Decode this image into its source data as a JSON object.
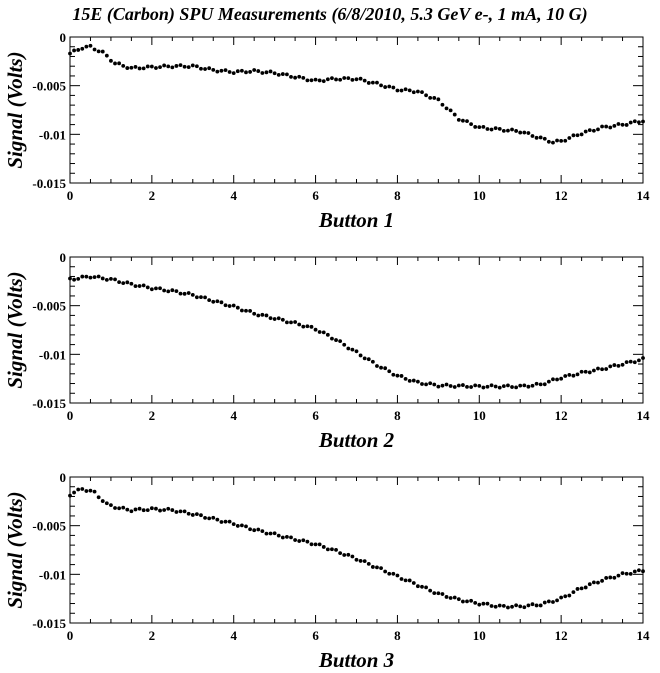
{
  "title": "15E (Carbon) SPU Measurements (6/8/2010, 5.3 GeV e-, 1 mA, 10 G)",
  "chart_data": [
    {
      "type": "scatter",
      "title": "",
      "xlabel": "Button 1",
      "ylabel": "Signal (Volts)",
      "xlim": [
        0,
        14
      ],
      "ylim": [
        -0.015,
        0
      ],
      "xticks": [
        "0",
        "2",
        "4",
        "6",
        "8",
        "10",
        "12",
        "14"
      ],
      "yticks": [
        "0",
        "-0.005",
        "-0.01",
        "-0.015"
      ],
      "grid": false,
      "anchors": [
        [
          0,
          -0.0017
        ],
        [
          0.3,
          -0.0011
        ],
        [
          0.5,
          -0.001
        ],
        [
          0.8,
          -0.0016
        ],
        [
          1.1,
          -0.0027
        ],
        [
          1.5,
          -0.0032
        ],
        [
          2,
          -0.0031
        ],
        [
          2.5,
          -0.003
        ],
        [
          3,
          -0.003
        ],
        [
          3.5,
          -0.0034
        ],
        [
          4,
          -0.0036
        ],
        [
          4.5,
          -0.0035
        ],
        [
          5,
          -0.0037
        ],
        [
          5.5,
          -0.0041
        ],
        [
          6,
          -0.0045
        ],
        [
          6.5,
          -0.0043
        ],
        [
          7,
          -0.0043
        ],
        [
          7.5,
          -0.0048
        ],
        [
          8,
          -0.0054
        ],
        [
          8.5,
          -0.0056
        ],
        [
          9,
          -0.0065
        ],
        [
          9.5,
          -0.0084
        ],
        [
          10,
          -0.0093
        ],
        [
          10.5,
          -0.0095
        ],
        [
          11,
          -0.0097
        ],
        [
          11.5,
          -0.0104
        ],
        [
          11.8,
          -0.0108
        ],
        [
          12,
          -0.0107
        ],
        [
          12.5,
          -0.0099
        ],
        [
          13,
          -0.0093
        ],
        [
          13.5,
          -0.009
        ],
        [
          14,
          -0.0086
        ]
      ]
    },
    {
      "type": "scatter",
      "title": "",
      "xlabel": "Button 2",
      "ylabel": "Signal (Volts)",
      "xlim": [
        0,
        14
      ],
      "ylim": [
        -0.015,
        0
      ],
      "xticks": [
        "0",
        "2",
        "4",
        "6",
        "8",
        "10",
        "12",
        "14"
      ],
      "yticks": [
        "0",
        "-0.005",
        "-0.01",
        "-0.015"
      ],
      "grid": false,
      "anchors": [
        [
          0,
          -0.0023
        ],
        [
          0.5,
          -0.002
        ],
        [
          1,
          -0.0023
        ],
        [
          1.5,
          -0.0028
        ],
        [
          2,
          -0.0032
        ],
        [
          2.5,
          -0.0035
        ],
        [
          3,
          -0.0039
        ],
        [
          3.5,
          -0.0045
        ],
        [
          4,
          -0.0051
        ],
        [
          4.5,
          -0.0058
        ],
        [
          5,
          -0.0063
        ],
        [
          5.5,
          -0.0068
        ],
        [
          6,
          -0.0074
        ],
        [
          6.5,
          -0.0085
        ],
        [
          7,
          -0.0098
        ],
        [
          7.5,
          -0.0111
        ],
        [
          8,
          -0.0122
        ],
        [
          8.5,
          -0.0129
        ],
        [
          9,
          -0.0132
        ],
        [
          10,
          -0.0133
        ],
        [
          11,
          -0.0133
        ],
        [
          11.5,
          -0.0131
        ],
        [
          12,
          -0.0124
        ],
        [
          12.5,
          -0.0119
        ],
        [
          13,
          -0.0115
        ],
        [
          13.5,
          -0.011
        ],
        [
          14,
          -0.0105
        ]
      ]
    },
    {
      "type": "scatter",
      "title": "",
      "xlabel": "Button 3",
      "ylabel": "Signal (Volts)",
      "xlim": [
        0,
        14
      ],
      "ylim": [
        -0.015,
        0
      ],
      "xticks": [
        "0",
        "2",
        "4",
        "6",
        "8",
        "10",
        "12",
        "14"
      ],
      "yticks": [
        "0",
        "-0.005",
        "-0.01",
        "-0.015"
      ],
      "grid": false,
      "anchors": [
        [
          0,
          -0.0018
        ],
        [
          0.3,
          -0.0012
        ],
        [
          0.6,
          -0.0016
        ],
        [
          0.9,
          -0.0028
        ],
        [
          1.2,
          -0.0032
        ],
        [
          1.5,
          -0.0034
        ],
        [
          2,
          -0.0033
        ],
        [
          2.5,
          -0.0034
        ],
        [
          3,
          -0.0038
        ],
        [
          3.5,
          -0.0043
        ],
        [
          4,
          -0.0048
        ],
        [
          4.5,
          -0.0054
        ],
        [
          5,
          -0.0059
        ],
        [
          5.5,
          -0.0064
        ],
        [
          6,
          -0.0069
        ],
        [
          6.5,
          -0.0076
        ],
        [
          7,
          -0.0084
        ],
        [
          7.5,
          -0.0093
        ],
        [
          8,
          -0.0102
        ],
        [
          8.5,
          -0.0111
        ],
        [
          9,
          -0.012
        ],
        [
          9.5,
          -0.0126
        ],
        [
          10,
          -0.013
        ],
        [
          10.5,
          -0.0133
        ],
        [
          11,
          -0.0133
        ],
        [
          11.5,
          -0.0131
        ],
        [
          12,
          -0.0125
        ],
        [
          12.5,
          -0.0114
        ],
        [
          13,
          -0.0106
        ],
        [
          13.5,
          -0.01
        ],
        [
          14,
          -0.0096
        ]
      ]
    }
  ]
}
